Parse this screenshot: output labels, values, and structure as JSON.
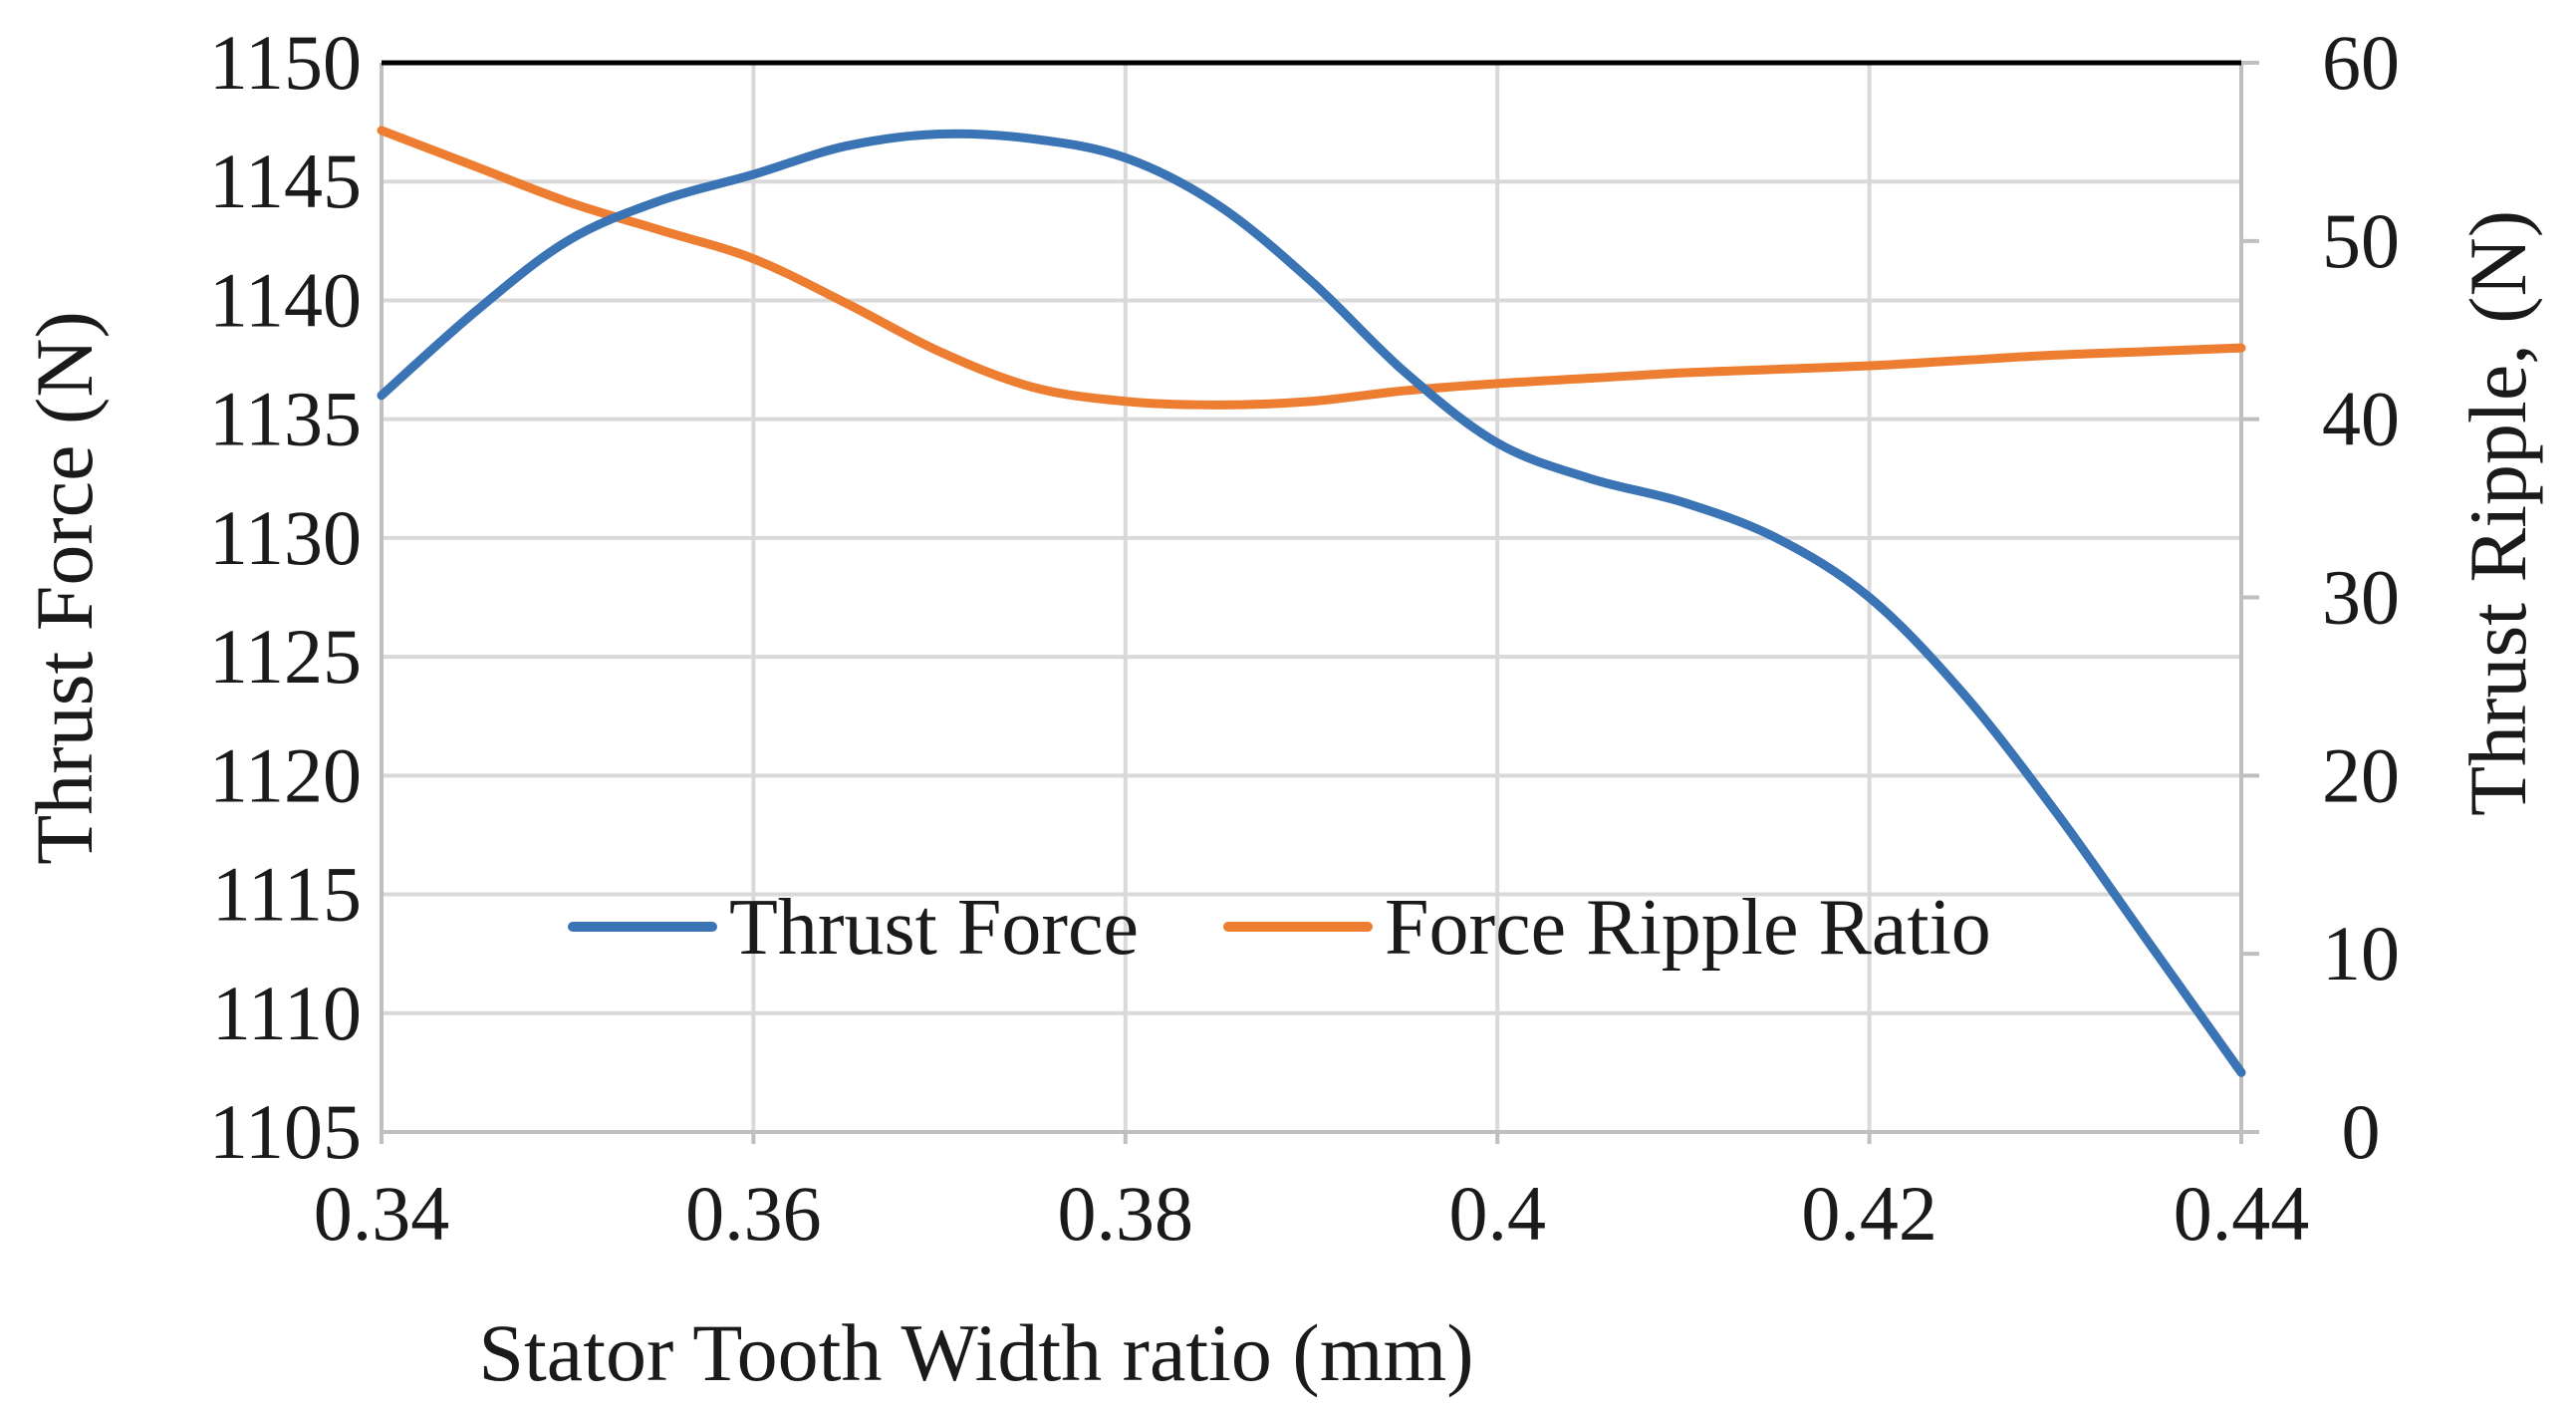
{
  "chart_data": {
    "type": "line",
    "title": "",
    "xlabel": "Stator Tooth Width ratio (mm)",
    "ylabel_left": "Thrust Force  (N)",
    "ylabel_right": "Thrust Ripple, (N)",
    "xlim": [
      0.34,
      0.44
    ],
    "ylim_left": [
      1105,
      1150
    ],
    "ylim_right": [
      0,
      60
    ],
    "x_ticks": [
      "0.34",
      "0.36",
      "0.38",
      "0.4",
      "0.42",
      "0.44"
    ],
    "y_ticks_left": [
      "1105",
      "1110",
      "1115",
      "1120",
      "1125",
      "1130",
      "1135",
      "1140",
      "1145",
      "1150"
    ],
    "y_ticks_right": [
      "0",
      "10",
      "20",
      "30",
      "40",
      "50",
      "60"
    ],
    "grid": true,
    "legend_position": "lower-center",
    "series": [
      {
        "name": "Thrust Force",
        "axis": "left",
        "color": "#3a74b5",
        "x": [
          0.34,
          0.345,
          0.35,
          0.355,
          0.36,
          0.365,
          0.37,
          0.375,
          0.38,
          0.385,
          0.39,
          0.395,
          0.4,
          0.405,
          0.41,
          0.415,
          0.42,
          0.425,
          0.43,
          0.435,
          0.44
        ],
        "values": [
          1136,
          1139.5,
          1142.5,
          1144.2,
          1145.3,
          1146.5,
          1147.0,
          1146.8,
          1146.0,
          1144.0,
          1140.8,
          1137.0,
          1134.0,
          1132.5,
          1131.5,
          1130.0,
          1127.5,
          1123.5,
          1118.5,
          1113.0,
          1107.5
        ]
      },
      {
        "name": "Force Ripple Ratio",
        "axis": "right",
        "color": "#ed7d31",
        "x": [
          0.34,
          0.345,
          0.35,
          0.355,
          0.36,
          0.365,
          0.37,
          0.375,
          0.38,
          0.385,
          0.39,
          0.395,
          0.4,
          0.405,
          0.41,
          0.415,
          0.42,
          0.425,
          0.43,
          0.435,
          0.44
        ],
        "values": [
          56.2,
          54.2,
          52.2,
          50.6,
          49.0,
          46.5,
          43.8,
          41.8,
          41.0,
          40.8,
          41.0,
          41.6,
          42.0,
          42.3,
          42.6,
          42.8,
          43.0,
          43.3,
          43.6,
          43.8,
          44.0
        ]
      }
    ]
  }
}
